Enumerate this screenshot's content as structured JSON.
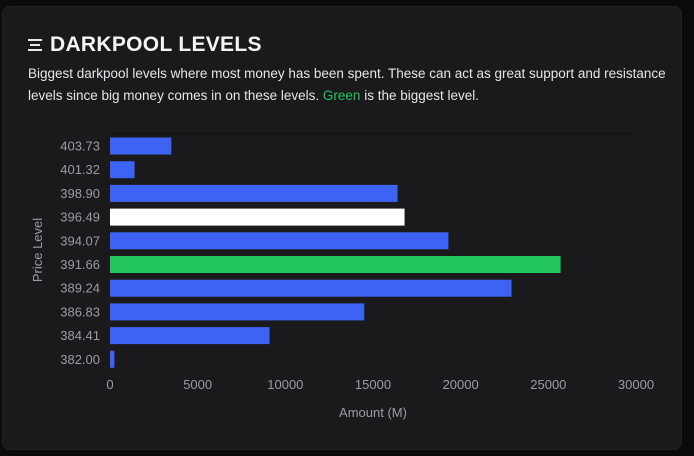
{
  "header": {
    "icon": "menu-lines-icon",
    "title": "DARKPOOL LEVELS"
  },
  "description": {
    "before": "Biggest darkpool levels where most money has been spent. These can act as great support and resistance levels since big money comes in on these levels. ",
    "highlight": "Green",
    "after": " is the biggest level."
  },
  "colors": {
    "bar": "#3d63f5",
    "current": "#ffffff",
    "biggest": "#22c55e",
    "background": "#1a1a1d"
  },
  "chart_data": {
    "type": "bar",
    "orientation": "horizontal",
    "categories": [
      "403.73",
      "401.32",
      "398.90",
      "396.49",
      "394.07",
      "391.66",
      "389.24",
      "386.83",
      "384.41",
      "382.00"
    ],
    "values": [
      3500,
      1400,
      16400,
      16800,
      19300,
      25700,
      22900,
      14500,
      9100,
      250
    ],
    "highlight": [
      "bar",
      "bar",
      "bar",
      "current",
      "bar",
      "biggest",
      "bar",
      "bar",
      "bar",
      "bar"
    ],
    "xlabel": "Amount (M)",
    "ylabel": "Price Level",
    "xlim": [
      0,
      30000
    ],
    "xticks": [
      0,
      5000,
      10000,
      15000,
      20000,
      25000,
      30000
    ],
    "grid": false,
    "legend": false
  }
}
